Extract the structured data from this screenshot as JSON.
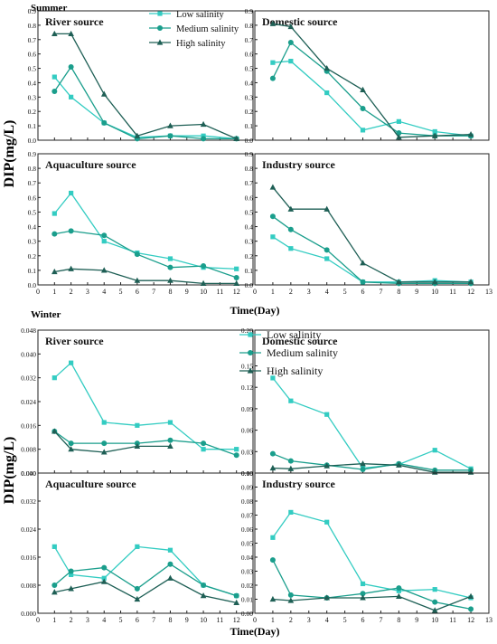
{
  "figure": {
    "ylabel": "DIP(mg/L)",
    "xlabel": "Time(Day)",
    "seasons": [
      "Summer",
      "Winter"
    ]
  },
  "legend": [
    "Low salinity",
    "Medium salinity",
    "High salinity"
  ],
  "colors": {
    "low": "#33ccc2",
    "medium": "#1a9e8c",
    "high": "#1e5f55"
  },
  "chart_data": [
    {
      "type": "line",
      "season": "Summer",
      "title": "River source",
      "x": [
        1,
        2,
        4,
        6,
        8,
        10,
        12
      ],
      "xlim": [
        0,
        13
      ],
      "ylim": [
        0,
        0.9
      ],
      "yticks": [
        "0.0",
        "0.1",
        "0.2",
        "0.3",
        "0.4",
        "0.5",
        "0.6",
        "0.7",
        "0.8",
        "0.9"
      ],
      "series": [
        {
          "name": "Low salinity",
          "values": [
            0.44,
            0.3,
            0.12,
            0.02,
            0.03,
            0.03,
            0.01
          ]
        },
        {
          "name": "Medium salinity",
          "values": [
            0.34,
            0.51,
            0.12,
            0.01,
            0.03,
            0.01,
            0.01
          ]
        },
        {
          "name": "High salinity",
          "values": [
            0.74,
            0.74,
            0.32,
            0.03,
            0.1,
            0.11,
            0.01
          ]
        }
      ]
    },
    {
      "type": "line",
      "season": "Summer",
      "title": "Domestic source",
      "x": [
        1,
        2,
        4,
        6,
        8,
        10,
        12
      ],
      "xlim": [
        0,
        13
      ],
      "ylim": [
        0,
        0.9
      ],
      "yticks": [
        "0.0",
        "0.1",
        "0.2",
        "0.3",
        "0.4",
        "0.5",
        "0.6",
        "0.7",
        "0.8",
        "0.9"
      ],
      "series": [
        {
          "name": "Low salinity",
          "values": [
            0.54,
            0.55,
            0.33,
            0.07,
            0.13,
            0.06,
            0.03
          ]
        },
        {
          "name": "Medium salinity",
          "values": [
            0.43,
            0.68,
            0.48,
            0.22,
            0.05,
            0.03,
            0.03
          ]
        },
        {
          "name": "High salinity",
          "values": [
            0.81,
            0.79,
            0.5,
            0.35,
            0.02,
            0.03,
            0.04
          ]
        }
      ]
    },
    {
      "type": "line",
      "season": "Summer",
      "title": "Aquaculture source",
      "x": [
        1,
        2,
        4,
        6,
        8,
        10,
        12
      ],
      "xlim": [
        0,
        13
      ],
      "ylim": [
        0,
        0.9
      ],
      "yticks": [
        "0.0",
        "0.1",
        "0.2",
        "0.3",
        "0.4",
        "0.5",
        "0.6",
        "0.7",
        "0.8",
        "0.9"
      ],
      "series": [
        {
          "name": "Low salinity",
          "values": [
            0.49,
            0.63,
            0.3,
            0.22,
            0.18,
            0.12,
            0.11
          ]
        },
        {
          "name": "Medium salinity",
          "values": [
            0.35,
            0.37,
            0.34,
            0.21,
            0.12,
            0.13,
            0.05
          ]
        },
        {
          "name": "High salinity",
          "values": [
            0.09,
            0.11,
            0.1,
            0.03,
            0.03,
            0.01,
            0.01
          ]
        }
      ]
    },
    {
      "type": "line",
      "season": "Summer",
      "title": "Industry source",
      "x": [
        1,
        2,
        4,
        6,
        8,
        10,
        12
      ],
      "xlim": [
        0,
        13
      ],
      "ylim": [
        0,
        0.9
      ],
      "yticks": [
        "0.0",
        "0.1",
        "0.2",
        "0.3",
        "0.4",
        "0.5",
        "0.6",
        "0.7",
        "0.8",
        "0.9"
      ],
      "series": [
        {
          "name": "Low salinity",
          "values": [
            0.33,
            0.25,
            0.18,
            0.02,
            0.02,
            0.03,
            0.02
          ]
        },
        {
          "name": "Medium salinity",
          "values": [
            0.47,
            0.38,
            0.24,
            0.02,
            0.01,
            0.01,
            0.01
          ]
        },
        {
          "name": "High salinity",
          "values": [
            0.67,
            0.52,
            0.52,
            0.15,
            0.02,
            0.02,
            0.02
          ]
        }
      ]
    },
    {
      "type": "line",
      "season": "Winter",
      "title": "River source",
      "x": [
        1,
        2,
        4,
        6,
        8,
        10,
        12
      ],
      "xlim": [
        0,
        13
      ],
      "ylim": [
        0,
        0.048
      ],
      "yticks": [
        "0.000",
        "0.008",
        "0.016",
        "0.024",
        "0.032",
        "0.040",
        "0.048"
      ],
      "series": [
        {
          "name": "Low salinity",
          "values": [
            0.032,
            0.037,
            0.017,
            0.016,
            0.017,
            0.008,
            0.008
          ]
        },
        {
          "name": "Medium salinity",
          "values": [
            0.014,
            0.01,
            0.01,
            0.01,
            0.011,
            0.01,
            0.006
          ]
        },
        {
          "name": "High salinity",
          "values": [
            0.014,
            0.008,
            0.007,
            0.009,
            0.009,
            null,
            null
          ]
        }
      ]
    },
    {
      "type": "line",
      "season": "Winter",
      "title": "Domestic source",
      "x": [
        1,
        2,
        4,
        6,
        8,
        10,
        12
      ],
      "xlim": [
        0,
        13
      ],
      "ylim": [
        0,
        0.2
      ],
      "yticks": [
        "0.00",
        "0.03",
        "0.06",
        "0.09",
        "0.12",
        "0.15",
        "0.20"
      ],
      "series": [
        {
          "name": "Low salinity",
          "values": [
            0.133,
            0.101,
            0.082,
            0.007,
            0.012,
            0.032,
            0.006
          ]
        },
        {
          "name": "Medium salinity",
          "values": [
            0.027,
            0.017,
            0.011,
            0.005,
            0.013,
            0.004,
            0.004
          ]
        },
        {
          "name": "High salinity",
          "values": [
            0.007,
            0.006,
            0.01,
            0.013,
            0.011,
            0.001,
            0.001
          ]
        }
      ]
    },
    {
      "type": "line",
      "season": "Winter",
      "title": "Aquaculture source",
      "x": [
        1,
        2,
        4,
        6,
        8,
        10,
        12
      ],
      "xlim": [
        0,
        13
      ],
      "ylim": [
        0,
        0.04
      ],
      "yticks": [
        "0.000",
        "0.008",
        "0.016",
        "0.024",
        "0.032",
        "0.040"
      ],
      "series": [
        {
          "name": "Low salinity",
          "values": [
            0.019,
            0.011,
            0.01,
            0.019,
            0.018,
            0.008,
            0.005
          ]
        },
        {
          "name": "Medium salinity",
          "values": [
            0.008,
            0.012,
            0.013,
            0.007,
            0.014,
            0.008,
            0.005
          ]
        },
        {
          "name": "High salinity",
          "values": [
            0.006,
            0.007,
            0.009,
            0.004,
            0.01,
            0.005,
            0.003
          ]
        }
      ]
    },
    {
      "type": "line",
      "season": "Winter",
      "title": "Industry source",
      "x": [
        1,
        2,
        4,
        6,
        8,
        10,
        12
      ],
      "xlim": [
        0,
        13
      ],
      "ylim": [
        0,
        0.1
      ],
      "yticks": [
        "0.00",
        "0.01",
        "0.02",
        "0.03",
        "0.04",
        "0.05",
        "0.06",
        "0.07",
        "0.08",
        "0.09",
        "0.10"
      ],
      "series": [
        {
          "name": "Low salinity",
          "values": [
            0.054,
            0.072,
            0.065,
            0.021,
            0.016,
            0.017,
            0.011
          ]
        },
        {
          "name": "Medium salinity",
          "values": [
            0.038,
            0.013,
            0.011,
            0.014,
            0.018,
            0.008,
            0.003
          ]
        },
        {
          "name": "High salinity",
          "values": [
            0.01,
            0.009,
            0.011,
            0.011,
            0.012,
            0.002,
            0.012
          ]
        }
      ]
    }
  ]
}
